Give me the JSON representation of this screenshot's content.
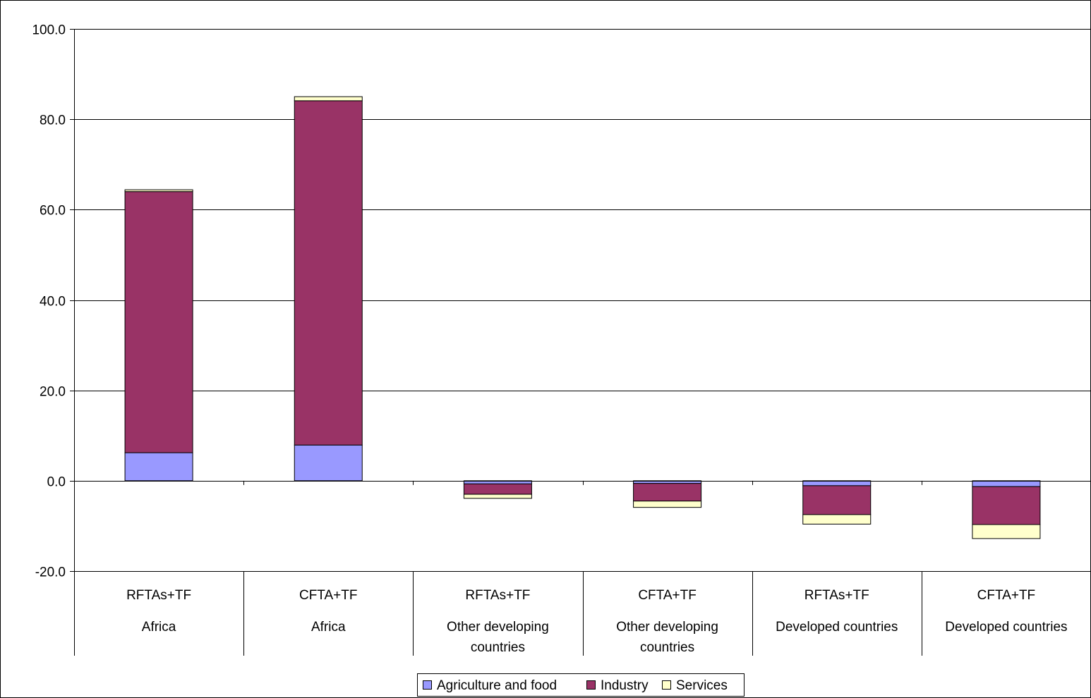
{
  "chart_data": {
    "type": "bar",
    "stacked": true,
    "title": "",
    "xlabel": "",
    "ylabel": "",
    "ylim": [
      -20,
      100
    ],
    "y_ticks": [
      "100.0",
      "80.0",
      "60.0",
      "40.0",
      "20.0",
      "0.0",
      "-20.0"
    ],
    "y_tick_values": [
      100,
      80,
      60,
      40,
      20,
      0,
      -20
    ],
    "grid": true,
    "legend_position": "bottom",
    "categories": [
      {
        "scenario": "RFTAs+TF",
        "group": [
          "Africa"
        ]
      },
      {
        "scenario": "CFTA+TF",
        "group": [
          "Africa"
        ]
      },
      {
        "scenario": "RFTAs+TF",
        "group": [
          "Other developing",
          "countries"
        ]
      },
      {
        "scenario": "CFTA+TF",
        "group": [
          "Other developing",
          "countries"
        ]
      },
      {
        "scenario": "RFTAs+TF",
        "group": [
          "Developed countries"
        ]
      },
      {
        "scenario": "CFTA+TF",
        "group": [
          "Developed countries"
        ]
      }
    ],
    "series": [
      {
        "name": "Agriculture and food",
        "color": "#9999ff",
        "values": [
          6.2,
          7.9,
          -0.7,
          -0.6,
          -1.1,
          -1.3
        ]
      },
      {
        "name": "Industry",
        "color": "#993366",
        "values": [
          57.8,
          76.2,
          -2.3,
          -3.9,
          -6.4,
          -8.4
        ]
      },
      {
        "name": "Services",
        "color": "#ffffcc",
        "values": [
          0.4,
          0.9,
          -0.9,
          -1.4,
          -2.1,
          -3.1
        ]
      }
    ]
  }
}
